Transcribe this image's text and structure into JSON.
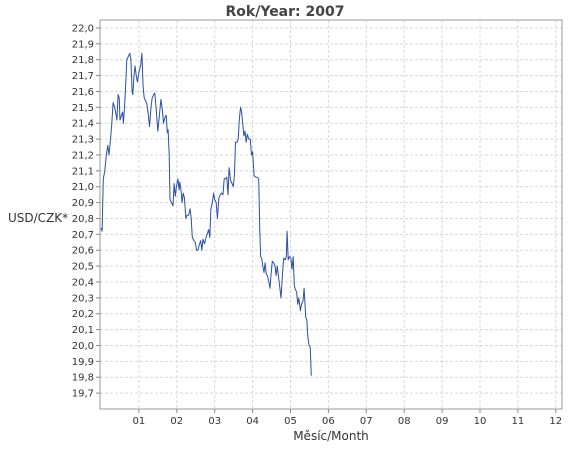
{
  "chart_data": {
    "type": "line",
    "title": "Rok/Year: 2007",
    "xlabel": "Měsíc/Month",
    "ylabel": "USD/CZK*",
    "x_ticks": [
      "01",
      "02",
      "03",
      "04",
      "05",
      "06",
      "07",
      "08",
      "09",
      "10",
      "11",
      "12"
    ],
    "xlim": [
      0,
      12
    ],
    "ylim": [
      19.6,
      22.05
    ],
    "y_ticks": [
      "19,7",
      "19,8",
      "19,9",
      "20,0",
      "20,1",
      "20,2",
      "20,3",
      "20,4",
      "20,5",
      "20,6",
      "20,7",
      "20,8",
      "20,9",
      "21,0",
      "21,1",
      "21,2",
      "21,3",
      "21,4",
      "21,5",
      "21,6",
      "21,7",
      "21,8",
      "21,9",
      "22,0"
    ],
    "grid": true,
    "line_color": "#2a4fa5",
    "series": [
      {
        "points": [
          [
            0.0,
            20.74
          ],
          [
            0.03,
            20.72
          ],
          [
            0.06,
            21.05
          ],
          [
            0.1,
            21.1
          ],
          [
            0.14,
            21.2
          ],
          [
            0.18,
            21.26
          ],
          [
            0.21,
            21.2
          ],
          [
            0.25,
            21.3
          ],
          [
            0.28,
            21.38
          ],
          [
            0.32,
            21.53
          ],
          [
            0.36,
            21.5
          ],
          [
            0.4,
            21.45
          ],
          [
            0.42,
            21.42
          ],
          [
            0.45,
            21.58
          ],
          [
            0.48,
            21.56
          ],
          [
            0.5,
            21.42
          ],
          [
            0.54,
            21.45
          ],
          [
            0.57,
            21.47
          ],
          [
            0.59,
            21.4
          ],
          [
            0.62,
            21.5
          ],
          [
            0.65,
            21.63
          ],
          [
            0.68,
            21.8
          ],
          [
            0.72,
            21.82
          ],
          [
            0.76,
            21.84
          ],
          [
            0.79,
            21.8
          ],
          [
            0.82,
            21.6
          ],
          [
            0.84,
            21.58
          ],
          [
            0.87,
            21.7
          ],
          [
            0.9,
            21.76
          ],
          [
            0.93,
            21.7
          ],
          [
            0.96,
            21.66
          ],
          [
            1.0,
            21.72
          ],
          [
            1.05,
            21.77
          ],
          [
            1.08,
            21.84
          ],
          [
            1.11,
            21.63
          ],
          [
            1.14,
            21.56
          ],
          [
            1.18,
            21.54
          ],
          [
            1.21,
            21.52
          ],
          [
            1.25,
            21.45
          ],
          [
            1.28,
            21.38
          ],
          [
            1.32,
            21.5
          ],
          [
            1.35,
            21.56
          ],
          [
            1.39,
            21.58
          ],
          [
            1.42,
            21.59
          ],
          [
            1.46,
            21.48
          ],
          [
            1.5,
            21.35
          ],
          [
            1.54,
            21.45
          ],
          [
            1.58,
            21.55
          ],
          [
            1.62,
            21.48
          ],
          [
            1.65,
            21.4
          ],
          [
            1.69,
            21.44
          ],
          [
            1.72,
            21.45
          ],
          [
            1.75,
            21.34
          ],
          [
            1.77,
            21.36
          ],
          [
            1.8,
            21.2
          ],
          [
            1.82,
            20.92
          ],
          [
            1.86,
            20.9
          ],
          [
            1.9,
            20.88
          ],
          [
            1.93,
            21.02
          ],
          [
            1.96,
            20.94
          ],
          [
            1.99,
            21.0
          ],
          [
            2.03,
            21.05
          ],
          [
            2.06,
            20.98
          ],
          [
            2.08,
            21.03
          ],
          [
            2.11,
            20.98
          ],
          [
            2.14,
            20.9
          ],
          [
            2.17,
            20.96
          ],
          [
            2.2,
            20.93
          ],
          [
            2.24,
            20.8
          ],
          [
            2.27,
            20.82
          ],
          [
            2.31,
            20.82
          ],
          [
            2.35,
            20.86
          ],
          [
            2.38,
            20.8
          ],
          [
            2.41,
            20.68
          ],
          [
            2.45,
            20.66
          ],
          [
            2.49,
            20.65
          ],
          [
            2.52,
            20.6
          ],
          [
            2.56,
            20.6
          ],
          [
            2.6,
            20.64
          ],
          [
            2.63,
            20.66
          ],
          [
            2.66,
            20.6
          ],
          [
            2.69,
            20.67
          ],
          [
            2.73,
            20.64
          ],
          [
            2.77,
            20.68
          ],
          [
            2.8,
            20.7
          ],
          [
            2.84,
            20.73
          ],
          [
            2.87,
            20.68
          ],
          [
            2.9,
            20.86
          ],
          [
            2.94,
            20.9
          ],
          [
            2.97,
            20.96
          ],
          [
            3.0,
            20.92
          ],
          [
            3.04,
            20.9
          ],
          [
            3.07,
            20.8
          ],
          [
            3.11,
            20.93
          ],
          [
            3.15,
            20.95
          ],
          [
            3.18,
            20.96
          ],
          [
            3.22,
            20.95
          ],
          [
            3.25,
            21.05
          ],
          [
            3.29,
            21.05
          ],
          [
            3.32,
            21.06
          ],
          [
            3.35,
            20.95
          ],
          [
            3.38,
            21.12
          ],
          [
            3.42,
            21.04
          ],
          [
            3.46,
            21.02
          ],
          [
            3.49,
            21.0
          ],
          [
            3.52,
            21.07
          ],
          [
            3.55,
            21.28
          ],
          [
            3.59,
            21.28
          ],
          [
            3.62,
            21.3
          ],
          [
            3.65,
            21.42
          ],
          [
            3.68,
            21.5
          ],
          [
            3.71,
            21.47
          ],
          [
            3.74,
            21.4
          ],
          [
            3.77,
            21.32
          ],
          [
            3.8,
            21.35
          ],
          [
            3.83,
            21.28
          ],
          [
            3.86,
            21.33
          ],
          [
            3.9,
            21.3
          ],
          [
            3.94,
            21.3
          ],
          [
            3.97,
            21.2
          ],
          [
            4.0,
            21.22
          ],
          [
            4.04,
            21.07
          ],
          [
            4.08,
            21.06
          ],
          [
            4.12,
            21.06
          ],
          [
            4.16,
            21.05
          ],
          [
            4.19,
            20.72
          ],
          [
            4.21,
            20.56
          ],
          [
            4.24,
            20.55
          ],
          [
            4.27,
            20.5
          ],
          [
            4.3,
            20.46
          ],
          [
            4.33,
            20.52
          ],
          [
            4.36,
            20.45
          ],
          [
            4.39,
            20.44
          ],
          [
            4.43,
            20.4
          ],
          [
            4.46,
            20.36
          ],
          [
            4.49,
            20.46
          ],
          [
            4.52,
            20.53
          ],
          [
            4.56,
            20.52
          ],
          [
            4.59,
            20.5
          ],
          [
            4.62,
            20.44
          ],
          [
            4.65,
            20.5
          ],
          [
            4.68,
            20.44
          ],
          [
            4.72,
            20.36
          ],
          [
            4.75,
            20.3
          ],
          [
            4.79,
            20.45
          ],
          [
            4.82,
            20.55
          ],
          [
            4.86,
            20.54
          ],
          [
            4.89,
            20.56
          ],
          [
            4.91,
            20.72
          ],
          [
            4.94,
            20.54
          ],
          [
            4.97,
            20.56
          ],
          [
            5.01,
            20.55
          ],
          [
            5.04,
            20.48
          ],
          [
            5.07,
            20.56
          ],
          [
            5.1,
            20.38
          ],
          [
            5.13,
            20.35
          ],
          [
            5.16,
            20.34
          ],
          [
            5.19,
            20.26
          ],
          [
            5.22,
            20.3
          ],
          [
            5.26,
            20.22
          ],
          [
            5.29,
            20.26
          ],
          [
            5.33,
            20.28
          ],
          [
            5.36,
            20.36
          ],
          [
            5.4,
            20.18
          ],
          [
            5.43,
            20.16
          ],
          [
            5.46,
            20.05
          ],
          [
            5.49,
            20.0
          ],
          [
            5.52,
            19.99
          ],
          [
            5.55,
            19.81
          ]
        ]
      }
    ]
  }
}
